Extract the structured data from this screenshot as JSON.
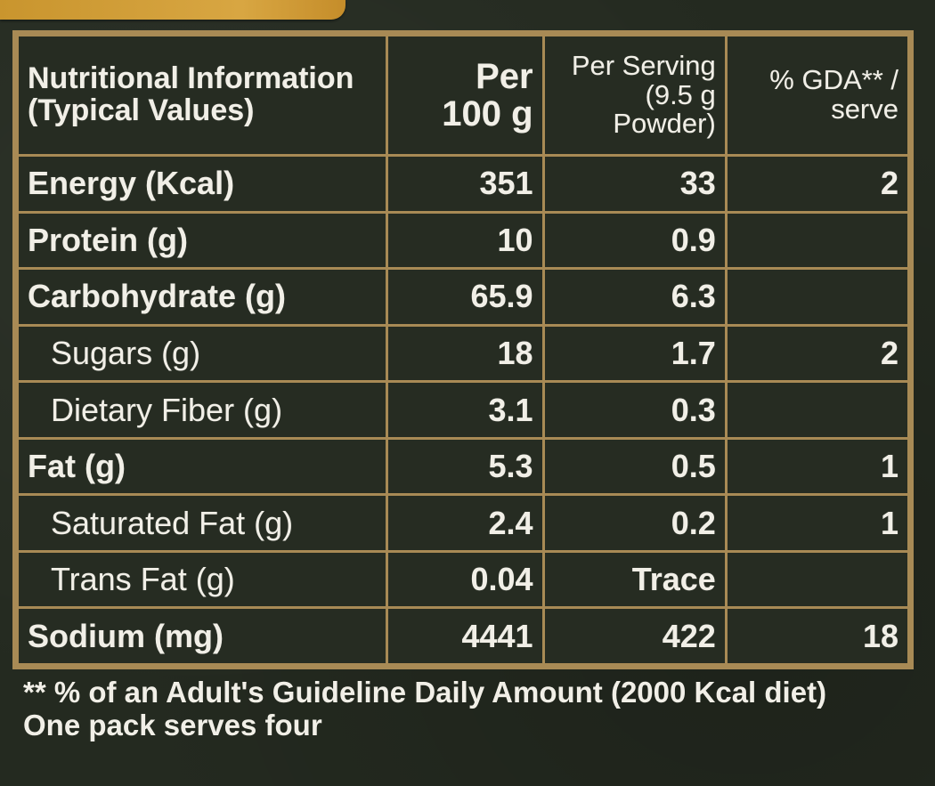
{
  "table": {
    "headers": {
      "col1": [
        "Nutritional Information",
        "(Typical Values)"
      ],
      "col2": [
        "Per",
        "100 g"
      ],
      "col3": [
        "Per Serving",
        "(9.5 g Powder)"
      ],
      "col4": [
        "% GDA** /",
        "serve"
      ]
    },
    "rows": [
      {
        "name": "Energy (Kcal)",
        "per100": "351",
        "serving": "33",
        "gda": "2"
      },
      {
        "name": "Protein (g)",
        "per100": "10",
        "serving": "0.9",
        "gda": ""
      },
      {
        "name": "Carbohydrate (g)",
        "per100": "65.9",
        "serving": "6.3",
        "gda": ""
      },
      {
        "name": "Sugars (g)",
        "per100": "18",
        "serving": "1.7",
        "gda": "2"
      },
      {
        "name": "Dietary Fiber (g)",
        "per100": "3.1",
        "serving": "0.3",
        "gda": ""
      },
      {
        "name": "Fat (g)",
        "per100": "5.3",
        "serving": "0.5",
        "gda": "1"
      },
      {
        "name": "Saturated Fat (g)",
        "per100": "2.4",
        "serving": "0.2",
        "gda": "1"
      },
      {
        "name": "Trans Fat (g)",
        "per100": "0.04",
        "serving": "Trace",
        "gda": ""
      },
      {
        "name": "Sodium (mg)",
        "per100": "4441",
        "serving": "422",
        "gda": "18"
      }
    ]
  },
  "footnotes": [
    "** % of an Adult's Guideline Daily Amount (2000 Kcal diet)",
    "One pack serves four"
  ],
  "colors": {
    "background": "#24291f",
    "border": "#a88a55",
    "accent_tab": "#d8a642",
    "text": "#f1efe7"
  }
}
